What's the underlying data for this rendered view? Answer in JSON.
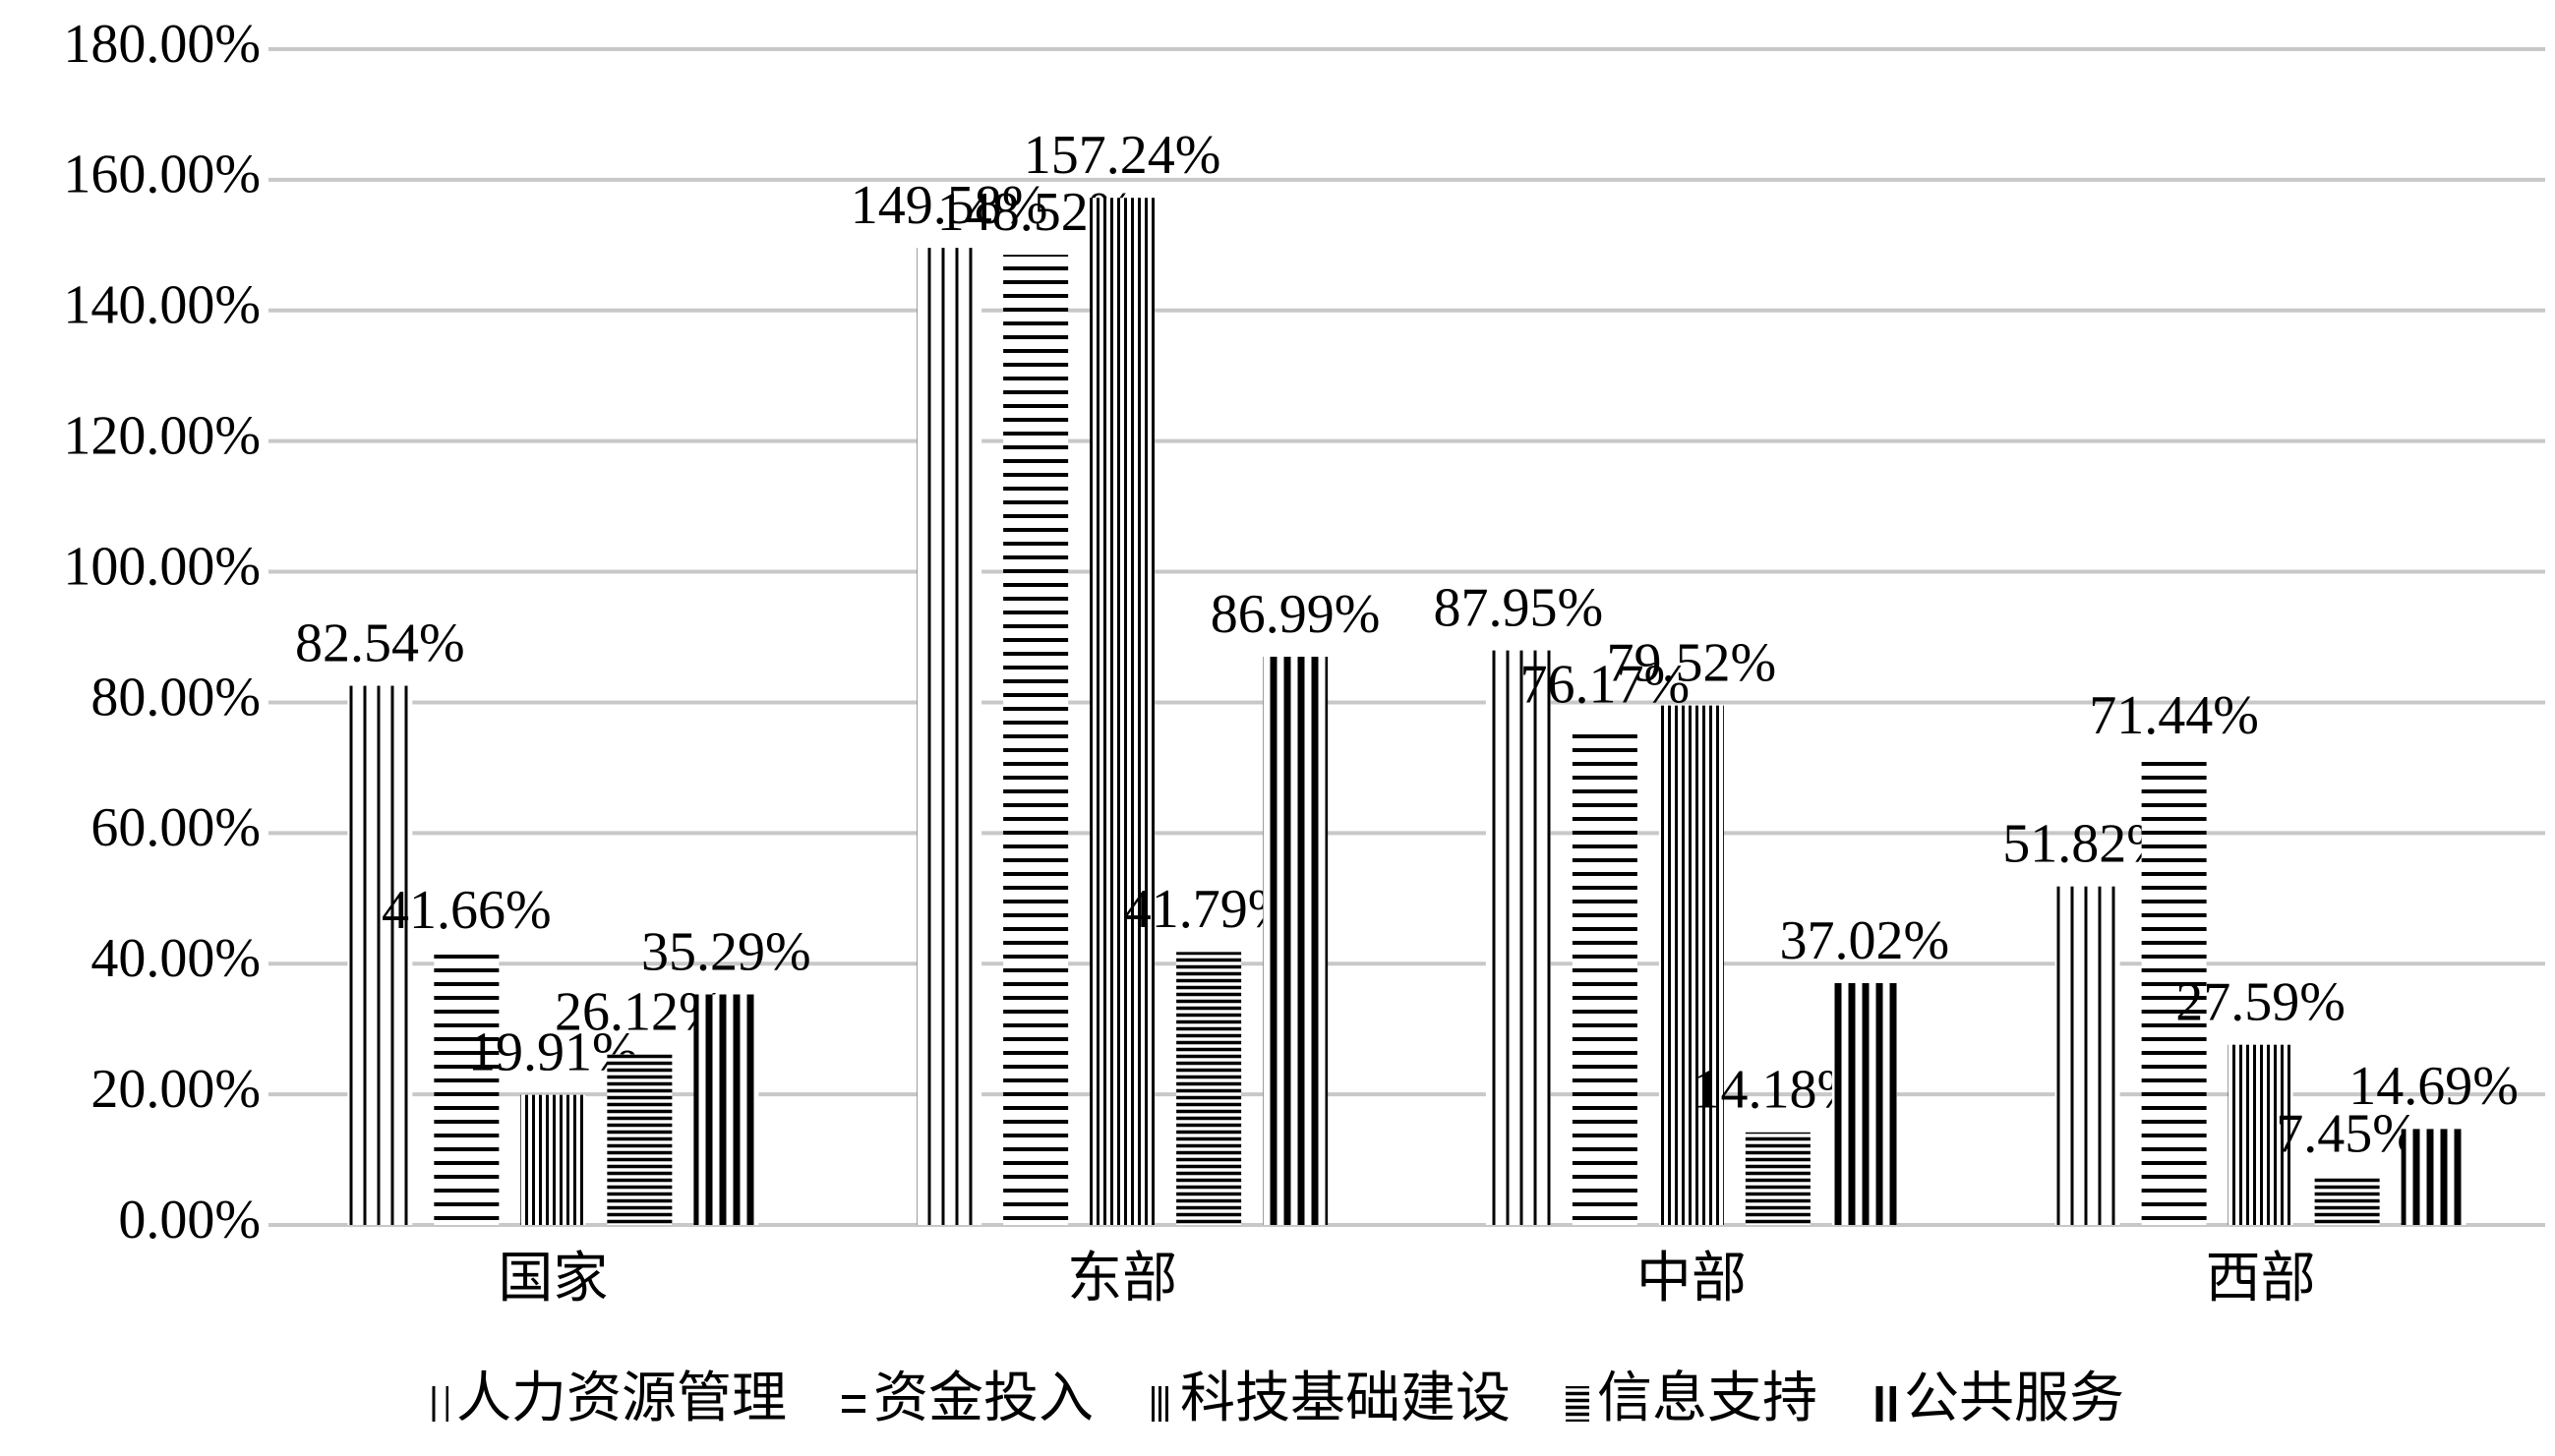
{
  "chart_data": {
    "type": "bar",
    "categories": [
      "国家",
      "东部",
      "中部",
      "西部"
    ],
    "series": [
      {
        "name": "人力资源管理",
        "color": "#000000",
        "values": [
          82.54,
          149.58,
          87.95,
          51.82
        ],
        "value_labels": [
          "82.54%",
          "149.58%",
          "87.95%",
          "51.82%"
        ]
      },
      {
        "name": "资金投入",
        "color": "#000000",
        "values": [
          41.66,
          148.52,
          76.17,
          71.44
        ],
        "value_labels": [
          "41.66%",
          "148.52%",
          "76.17%",
          "71.44%"
        ]
      },
      {
        "name": "科技基础建设",
        "color": "#000000",
        "values": [
          19.91,
          157.24,
          79.52,
          27.59
        ],
        "value_labels": [
          "19.91%",
          "157.24%",
          "79.52%",
          "27.59%"
        ]
      },
      {
        "name": "信息支持",
        "color": "#000000",
        "values": [
          26.12,
          41.79,
          14.18,
          7.45
        ],
        "value_labels": [
          "26.12%",
          "41.79%",
          "14.18%",
          "7.45%"
        ]
      },
      {
        "name": "公共服务",
        "color": "#000000",
        "values": [
          35.29,
          86.99,
          37.02,
          14.69
        ],
        "value_labels": [
          "35.29%",
          "86.99%",
          "37.02%",
          "14.69%"
        ]
      }
    ],
    "ylim": [
      0,
      180
    ],
    "yticks": [
      {
        "value": 0,
        "label": "0.00%"
      },
      {
        "value": 20,
        "label": "20.00%"
      },
      {
        "value": 40,
        "label": "40.00%"
      },
      {
        "value": 60,
        "label": "60.00%"
      },
      {
        "value": 80,
        "label": "80.00%"
      },
      {
        "value": 100,
        "label": "100.00%"
      },
      {
        "value": 120,
        "label": "120.00%"
      },
      {
        "value": 140,
        "label": "140.00%"
      },
      {
        "value": 160,
        "label": "160.00%"
      },
      {
        "value": 180,
        "label": "180.00%"
      }
    ],
    "grid": true,
    "legend": "bottom"
  }
}
